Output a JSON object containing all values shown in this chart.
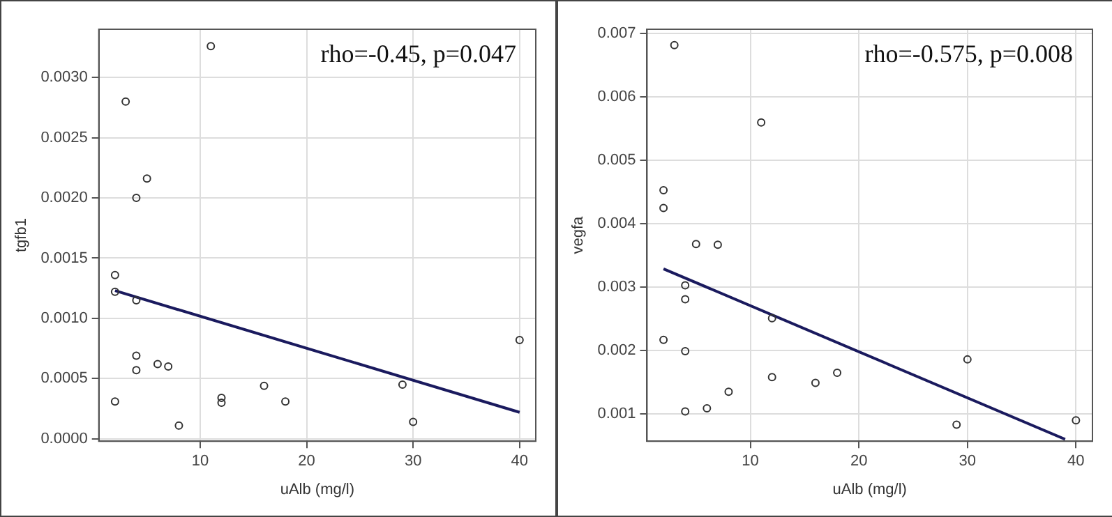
{
  "chart_data": [
    {
      "type": "scatter",
      "xlabel": "uAlb (mg/l)",
      "ylabel": "tgfb1",
      "annotations": [
        "rho=-0.45, p=0.047"
      ],
      "grid": true,
      "xlim": [
        0.48,
        41.52
      ],
      "xticks": [
        10,
        20,
        30,
        40
      ],
      "ylim": [
        -2e-05,
        0.0034
      ],
      "yticks": [
        {
          "value": 0,
          "label": "0.0000"
        },
        {
          "value": 0.0005,
          "label": "0.0005"
        },
        {
          "value": 0.001,
          "label": "0.0010"
        },
        {
          "value": 0.0015,
          "label": "0.0015"
        },
        {
          "value": 0.002,
          "label": "0.0020"
        },
        {
          "value": 0.0025,
          "label": "0.0025"
        },
        {
          "value": 0.003,
          "label": "0.0030"
        }
      ],
      "series": [
        {
          "type": "scatter",
          "marker": "circle",
          "color": "#333333",
          "x": [
            2,
            2,
            2,
            3,
            4,
            4,
            4,
            4,
            5,
            6,
            7,
            8,
            11,
            12,
            12,
            16,
            18,
            29,
            30,
            40
          ],
          "values": [
            0.00136,
            0.00122,
            0.00031,
            0.0028,
            0.002,
            0.00115,
            0.00069,
            0.00057,
            0.00216,
            0.00062,
            0.0006,
            0.00011,
            0.00326,
            0.00034,
            0.0003,
            0.00044,
            0.00031,
            0.00045,
            0.00014,
            0.00082
          ]
        },
        {
          "type": "line",
          "marker": "none",
          "color": "#1a1a5e",
          "x": [
            2,
            40
          ],
          "values": [
            0.00123,
            0.00022
          ]
        }
      ]
    },
    {
      "type": "scatter",
      "xlabel": "uAlb (mg/l)",
      "ylabel": "vegfa",
      "annotations": [
        "rho=-0.575, p=0.008"
      ],
      "grid": true,
      "xlim": [
        0.48,
        41.52
      ],
      "xticks": [
        10,
        20,
        30,
        40
      ],
      "ylim": [
        0.00057,
        0.00707
      ],
      "yticks": [
        0.001,
        0.002,
        0.003,
        0.004,
        0.005,
        0.006,
        0.007
      ],
      "series": [
        {
          "type": "scatter",
          "marker": "circle",
          "color": "#333333",
          "x": [
            3,
            2,
            2,
            2,
            4,
            4,
            4,
            4,
            5,
            7,
            6,
            8,
            11,
            12,
            12,
            16,
            18,
            30,
            29,
            40
          ],
          "values": [
            0.00682,
            0.00453,
            0.00425,
            0.00217,
            0.00303,
            0.00281,
            0.00199,
            0.00104,
            0.00368,
            0.00367,
            0.00109,
            0.00135,
            0.0056,
            0.00251,
            0.00158,
            0.00149,
            0.00165,
            0.00186,
            0.00083,
            0.0009
          ]
        },
        {
          "type": "line",
          "marker": "none",
          "color": "#1a1a5e",
          "x": [
            2,
            39
          ],
          "values": [
            0.00329,
            0.0006
          ]
        }
      ]
    }
  ]
}
